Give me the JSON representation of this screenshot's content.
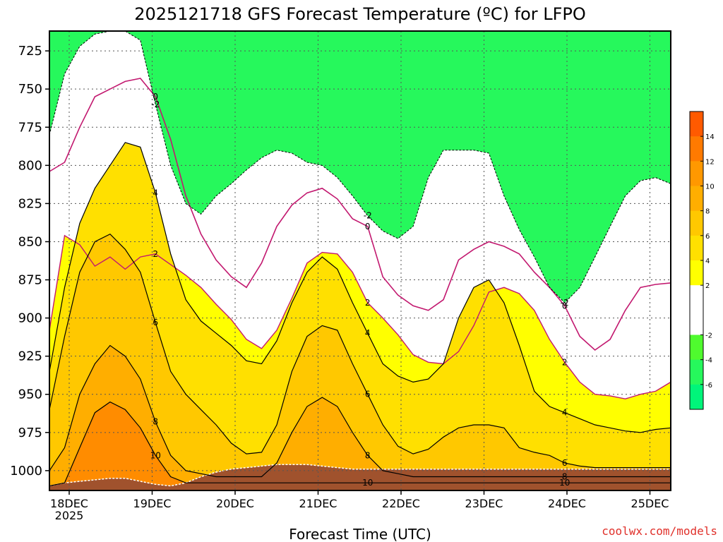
{
  "chart_data": {
    "type": "heatmap",
    "title": "2025121718 GFS Forecast Temperature (ºC) for LFPO",
    "xlabel": "Forecast Time (UTC)",
    "ylabel": "",
    "x_ticks": [
      "18DEC",
      "19DEC",
      "20DEC",
      "21DEC",
      "22DEC",
      "23DEC",
      "24DEC",
      "25DEC"
    ],
    "x_start_label": "2025",
    "y_ticks": [
      725,
      750,
      775,
      800,
      825,
      850,
      875,
      900,
      925,
      950,
      975,
      1000
    ],
    "ylim": [
      1013,
      712
    ],
    "grid": true,
    "colorbar": {
      "levels": [
        -8,
        -6,
        -4,
        -2,
        0,
        2,
        4,
        6,
        8,
        10,
        12,
        14,
        16
      ],
      "tick_labels": [
        "-6",
        "-4",
        "-2",
        "2",
        "4",
        "6",
        "8",
        "10",
        "12",
        "14"
      ],
      "colors": [
        "#00f57a",
        "#26f85c",
        "#4ffb2e",
        "#ffffff",
        "#ffffff",
        "#ffff00",
        "#ffe000",
        "#ffc800",
        "#ffae00",
        "#ff9800",
        "#ff7a00",
        "#ff5a00"
      ]
    },
    "series": [
      {
        "name": "2",
        "values": [
          908,
          846,
          852,
          866,
          860,
          868,
          860,
          858,
          865,
          872,
          880,
          891,
          901,
          914,
          920,
          908,
          887,
          864,
          857,
          858,
          870,
          890,
          900,
          911,
          924,
          929,
          930,
          922,
          905,
          883,
          880,
          884,
          895,
          914,
          929,
          942,
          950,
          951,
          953,
          950,
          948,
          942
        ]
      },
      {
        "name": "0",
        "values": [
          804,
          798,
          775,
          755,
          750,
          745,
          743,
          755,
          783,
          820,
          845,
          862,
          873,
          880,
          864,
          840,
          826,
          818,
          815,
          822,
          835,
          840,
          873,
          885,
          892,
          895,
          888,
          862,
          855,
          850,
          853,
          858,
          870,
          880,
          892,
          912,
          921,
          914,
          895,
          880,
          878,
          877
        ]
      },
      {
        "name": "-2",
        "values": [
          780,
          740,
          722,
          714,
          712,
          712,
          718,
          760,
          800,
          825,
          832,
          820,
          812,
          803,
          795,
          790,
          792,
          798,
          800,
          808,
          820,
          833,
          843,
          848,
          840,
          808,
          790,
          790,
          790,
          792,
          820,
          842,
          860,
          880,
          890,
          880,
          860,
          840,
          820,
          810,
          808,
          812
        ]
      },
      {
        "name": "4",
        "values": [
          935,
          880,
          838,
          815,
          800,
          785,
          788,
          818,
          858,
          888,
          902,
          910,
          918,
          928,
          930,
          915,
          890,
          870,
          860,
          868,
          890,
          910,
          930,
          938,
          942,
          940,
          930,
          900,
          880,
          875,
          890,
          918,
          948,
          958,
          962,
          966,
          970,
          972,
          974,
          975,
          973,
          972
        ]
      },
      {
        "name": "6",
        "values": [
          960,
          912,
          870,
          850,
          845,
          855,
          870,
          903,
          935,
          950,
          960,
          970,
          982,
          989,
          988,
          970,
          935,
          912,
          905,
          908,
          930,
          950,
          970,
          984,
          989,
          986,
          978,
          972,
          970,
          970,
          972,
          985,
          988,
          990,
          995,
          997,
          998,
          998,
          998,
          998,
          998,
          998
        ]
      },
      {
        "name": "8",
        "values": [
          1000,
          985,
          950,
          930,
          918,
          925,
          940,
          968,
          990,
          1000,
          1002,
          1004,
          1004,
          1004,
          1004,
          995,
          975,
          958,
          952,
          958,
          975,
          990,
          1000,
          1002,
          1004,
          1004,
          1004,
          1004,
          1004,
          1004,
          1004,
          1004,
          1004,
          1004,
          1004,
          1004,
          1004,
          1004,
          1004,
          1004,
          1004,
          1004
        ]
      },
      {
        "name": "10",
        "values": [
          1010,
          1008,
          985,
          962,
          955,
          960,
          972,
          990,
          1004,
          1008,
          1008,
          1008,
          1008,
          1008,
          1008,
          1008,
          1008,
          1008,
          1008,
          1008,
          1008,
          1008,
          1008,
          1008,
          1008,
          1008,
          1008,
          1008,
          1008,
          1008,
          1008,
          1008,
          1008,
          1008,
          1008,
          1008,
          1008,
          1008,
          1008,
          1008,
          1008,
          1008
        ]
      }
    ]
  },
  "credit": "coolwx.com/models"
}
